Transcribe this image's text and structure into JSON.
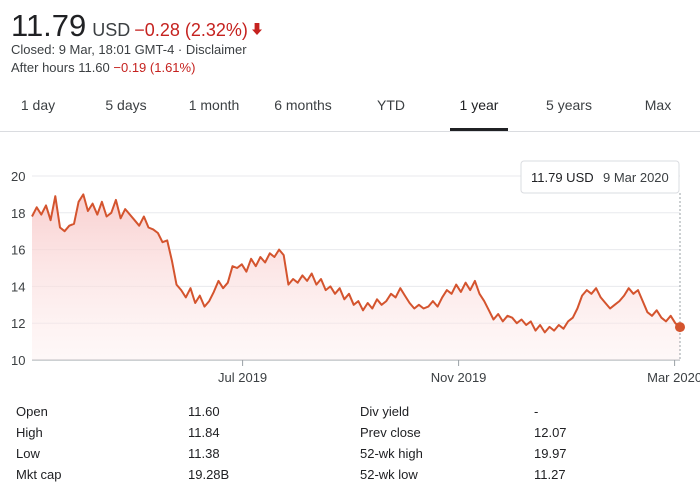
{
  "quote": {
    "price": "11.79",
    "currency": "USD",
    "change": "−0.28 (2.32%)",
    "closed_text": "Closed: 9 Mar, 18:01 GMT-4",
    "separator": "·",
    "disclaimer": "Disclaimer",
    "after_hours_label": "After hours 11.60",
    "after_hours_change": "−0.19 (1.61%)"
  },
  "tabs": [
    {
      "label": "1 day"
    },
    {
      "label": "5 days"
    },
    {
      "label": "1 month"
    },
    {
      "label": "6 months"
    },
    {
      "label": "YTD"
    },
    {
      "label": "1 year",
      "active": true
    },
    {
      "label": "5 years"
    },
    {
      "label": "Max"
    }
  ],
  "tooltip": {
    "price": "11.79 USD",
    "date": "9 Mar 2020"
  },
  "colors": {
    "line": "#d4542e",
    "fill_top": "#f8c8c8",
    "negative": "#c5221f"
  },
  "chart_data": {
    "type": "area",
    "y_ticks": [
      "20",
      "18",
      "16",
      "14",
      "12",
      "10"
    ],
    "ylim": [
      10,
      20
    ],
    "x_ticks": [
      {
        "label": "Jul 2019",
        "month_index": 3.9
      },
      {
        "label": "Nov 2019",
        "month_index": 7.9
      },
      {
        "label": "Mar 2020",
        "month_index": 11.9
      }
    ],
    "series": [
      {
        "values": [
          17.8,
          18.3,
          17.9,
          18.4,
          17.6,
          18.9,
          17.2,
          17.0,
          17.3,
          17.4,
          18.6,
          19.0,
          18.1,
          18.5,
          17.9,
          18.6,
          17.8,
          18.0,
          18.7,
          17.7,
          18.2,
          17.9,
          17.6,
          17.3,
          17.8,
          17.2,
          17.1,
          16.9,
          16.4,
          16.5,
          15.4,
          14.1,
          13.8,
          13.4,
          13.9,
          13.1,
          13.5,
          12.9,
          13.2,
          13.7,
          14.3,
          13.9,
          14.2,
          15.1,
          15.0,
          15.2,
          14.8,
          15.5,
          15.1,
          15.6,
          15.3,
          15.8,
          15.6,
          16.0,
          15.7,
          14.1,
          14.4,
          14.2,
          14.6,
          14.3,
          14.7,
          14.1,
          14.4,
          13.8,
          14.0,
          13.6,
          13.9,
          13.3,
          13.6,
          13.0,
          13.2,
          12.7,
          13.1,
          12.8,
          13.3,
          13.0,
          13.2,
          13.6,
          13.4,
          13.9,
          13.5,
          13.1,
          12.8,
          13.0,
          12.8,
          12.9,
          13.2,
          12.9,
          13.4,
          13.8,
          13.6,
          14.1,
          13.7,
          14.2,
          13.8,
          14.3,
          13.6,
          13.2,
          12.7,
          12.2,
          12.5,
          12.1,
          12.4,
          12.3,
          12.0,
          12.2,
          11.9,
          12.1,
          11.6,
          11.9,
          11.5,
          11.8,
          11.6,
          11.9,
          11.7,
          12.1,
          12.3,
          12.8,
          13.5,
          13.8,
          13.6,
          13.9,
          13.4,
          13.1,
          12.8,
          13.0,
          13.2,
          13.5,
          13.9,
          13.6,
          13.8,
          13.2,
          12.6,
          12.4,
          12.7,
          12.3,
          12.1,
          12.4,
          12.0,
          11.79
        ]
      }
    ]
  },
  "stats": {
    "left": [
      {
        "label": "Open",
        "value": "11.60"
      },
      {
        "label": "High",
        "value": "11.84"
      },
      {
        "label": "Low",
        "value": "11.38"
      },
      {
        "label": "Mkt cap",
        "value": "19.28B"
      }
    ],
    "right": [
      {
        "label": "Div yield",
        "value": "-"
      },
      {
        "label": "Prev close",
        "value": "12.07"
      },
      {
        "label": "52-wk high",
        "value": "19.97"
      },
      {
        "label": "52-wk low",
        "value": "11.27"
      }
    ]
  }
}
